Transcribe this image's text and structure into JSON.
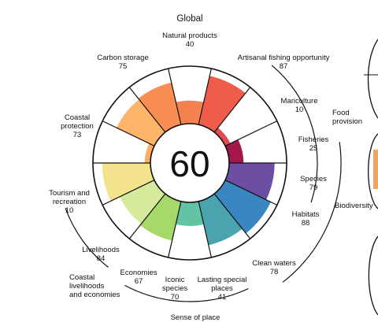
{
  "chart_data": {
    "type": "polar-bar",
    "title": "Global",
    "center_score": "60",
    "ylim": [
      0,
      100
    ],
    "grid": false,
    "goals": [
      {
        "name": "Natural products",
        "value": 40,
        "color": "#f5824e"
      },
      {
        "name": "Artisanal fishing opportunity",
        "value": 87,
        "color": "#ef5d4a"
      },
      {
        "name": "Mariculture",
        "value": 10,
        "color": "#e04a51"
      },
      {
        "name": "Fisheries",
        "value": 25,
        "color": "#a3174b"
      },
      {
        "name": "Species",
        "value": 79,
        "color": "#6c4fa2"
      },
      {
        "name": "Habitats",
        "value": 88,
        "color": "#3a86c1"
      },
      {
        "name": "Clean waters",
        "value": 78,
        "color": "#4ba3b0"
      },
      {
        "name": "Lasting special places",
        "value": 41,
        "color": "#63c3a5"
      },
      {
        "name": "Iconic species",
        "value": 70,
        "color": "#a6d96a"
      },
      {
        "name": "Economies",
        "value": 67,
        "color": "#d6ea9b"
      },
      {
        "name": "Livelihoods",
        "value": 84,
        "color": "#f2e38c"
      },
      {
        "name": "Tourism and recreation",
        "value": 10,
        "color": "#fdae61"
      },
      {
        "name": "Coastal protection",
        "value": 73,
        "color": "#fdb56a"
      },
      {
        "name": "Carbon storage",
        "value": 75,
        "color": "#f98d52"
      }
    ],
    "labels": [
      {
        "lines": [
          "Natural products",
          "40"
        ]
      },
      {
        "lines": [
          "Artisanal fishing opportunity",
          "87"
        ]
      },
      {
        "lines": [
          "Mariculture",
          "10"
        ]
      },
      {
        "lines": [
          "Fisheries",
          "25"
        ]
      },
      {
        "lines": [
          "Species",
          "79"
        ]
      },
      {
        "lines": [
          "Habitats",
          "88"
        ]
      },
      {
        "lines": [
          "Clean waters",
          "78"
        ]
      },
      {
        "lines": [
          "Lasting special",
          "places",
          "41"
        ]
      },
      {
        "lines": [
          "Iconic",
          "species",
          "70"
        ]
      },
      {
        "lines": [
          "Economies",
          "67"
        ]
      },
      {
        "lines": [
          "Livelihoods",
          "84"
        ]
      },
      {
        "lines": [
          "Tourism and",
          "recreation",
          "10"
        ]
      },
      {
        "lines": [
          "Coastal",
          "protection",
          "73"
        ]
      },
      {
        "lines": [
          "Carbon storage",
          "75"
        ]
      }
    ],
    "groups": [
      {
        "lines": [
          "Food",
          "provision"
        ]
      },
      {
        "lines": [
          "Biodiversity"
        ]
      },
      {
        "lines": [
          "Sense of place"
        ]
      },
      {
        "lines": [
          "Coastal",
          "livelihoods",
          "and economies"
        ]
      }
    ]
  }
}
